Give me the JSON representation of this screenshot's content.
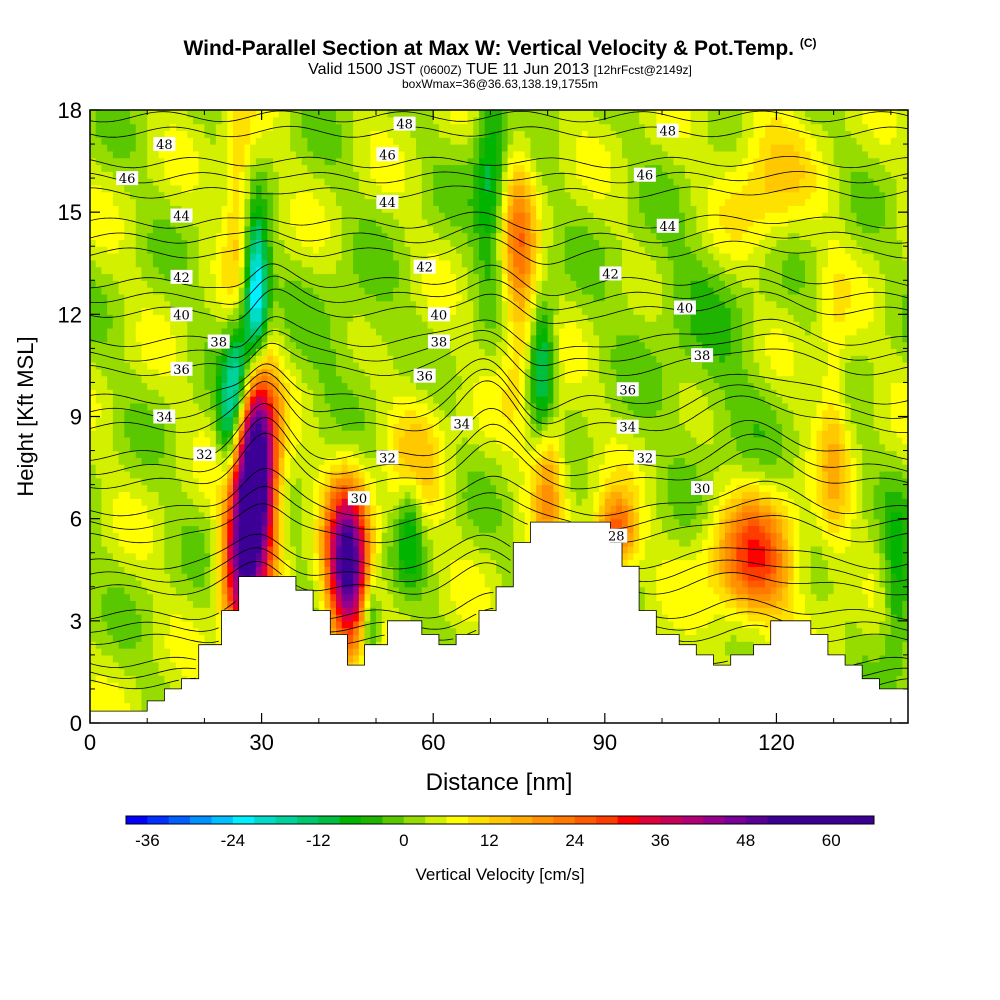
{
  "chart_data": {
    "type": "heatmap",
    "title": "Wind-Parallel Section at Max W: Vertical Velocity & Pot.Temp.",
    "title_mark": "(C)",
    "subtitle_main": "Valid 1500 JST",
    "subtitle_utc": "(0600Z)",
    "subtitle_date": "TUE 11 Jun 2013",
    "subtitle_fcst": "[12hrFcst@2149z]",
    "subtitle2": "boxWmax=36@36.63,138.19,1755m",
    "xlabel": "Distance [nm]",
    "ylabel": "Height [Kft MSL]",
    "xlim": [
      0,
      143
    ],
    "ylim": [
      0,
      18
    ],
    "xticks": [
      0,
      30,
      60,
      90,
      120
    ],
    "yticks": [
      0,
      3,
      6,
      9,
      12,
      15,
      18
    ],
    "colorbar": {
      "label": "Vertical Velocity [cm/s]",
      "ticks": [
        -36,
        -24,
        -12,
        0,
        12,
        24,
        36,
        48,
        60
      ],
      "min": -39,
      "max": 66,
      "step": 3,
      "colors": [
        "#0000ff",
        "#0030ff",
        "#0060ff",
        "#0090ff",
        "#00c0ff",
        "#00f0ff",
        "#00dcc8",
        "#00d29b",
        "#00c86e",
        "#00be41",
        "#00b400",
        "#1eb400",
        "#5ac800",
        "#96dc00",
        "#d2f000",
        "#ffff00",
        "#ffe100",
        "#ffc800",
        "#ffaa00",
        "#ff9100",
        "#ff7800",
        "#ff5a00",
        "#ff3c00",
        "#ff0000",
        "#e1003c",
        "#c8005a",
        "#b40078",
        "#96008c",
        "#780096",
        "#5a0096",
        "#3c0096",
        "#3c0096",
        "#3c0096",
        "#3c0096",
        "#3c0096"
      ]
    },
    "terrain": [
      [
        0,
        0.35
      ],
      [
        10,
        0.35
      ],
      [
        10,
        0.65
      ],
      [
        13,
        0.65
      ],
      [
        13,
        1.0
      ],
      [
        16,
        1.0
      ],
      [
        16,
        1.3
      ],
      [
        19,
        1.3
      ],
      [
        19,
        2.3
      ],
      [
        23,
        2.3
      ],
      [
        23,
        3.3
      ],
      [
        26,
        3.3
      ],
      [
        26,
        4.3
      ],
      [
        36,
        4.3
      ],
      [
        36,
        3.9
      ],
      [
        39,
        3.9
      ],
      [
        39,
        3.3
      ],
      [
        42,
        3.3
      ],
      [
        42,
        2.6
      ],
      [
        45,
        2.6
      ],
      [
        45,
        1.7
      ],
      [
        48,
        1.7
      ],
      [
        48,
        2.3
      ],
      [
        52,
        2.3
      ],
      [
        52,
        3.0
      ],
      [
        58,
        3.0
      ],
      [
        58,
        2.6
      ],
      [
        61,
        2.6
      ],
      [
        61,
        2.3
      ],
      [
        64,
        2.3
      ],
      [
        64,
        2.6
      ],
      [
        68,
        2.6
      ],
      [
        68,
        3.3
      ],
      [
        71,
        3.3
      ],
      [
        71,
        4.0
      ],
      [
        74,
        4.0
      ],
      [
        74,
        5.3
      ],
      [
        77,
        5.3
      ],
      [
        77,
        5.9
      ],
      [
        91,
        5.9
      ],
      [
        91,
        5.3
      ],
      [
        93,
        5.3
      ],
      [
        93,
        4.6
      ],
      [
        96,
        4.6
      ],
      [
        96,
        3.3
      ],
      [
        99,
        3.3
      ],
      [
        99,
        2.6
      ],
      [
        103,
        2.6
      ],
      [
        103,
        2.3
      ],
      [
        106,
        2.3
      ],
      [
        106,
        2.0
      ],
      [
        109,
        2.0
      ],
      [
        109,
        1.7
      ],
      [
        112,
        1.7
      ],
      [
        112,
        2.0
      ],
      [
        116,
        2.0
      ],
      [
        116,
        2.3
      ],
      [
        119,
        2.3
      ],
      [
        119,
        3.0
      ],
      [
        126,
        3.0
      ],
      [
        126,
        2.6
      ],
      [
        129,
        2.6
      ],
      [
        129,
        2.0
      ],
      [
        132,
        2.0
      ],
      [
        132,
        1.7
      ],
      [
        135,
        1.7
      ],
      [
        135,
        1.3
      ],
      [
        138,
        1.3
      ],
      [
        138,
        1.0
      ],
      [
        143,
        1.0
      ]
    ],
    "w_features": [
      {
        "x": 29,
        "y": 7.3,
        "sx": 2.5,
        "sy": 2.2,
        "a": 66
      },
      {
        "x": 26,
        "y": 4.5,
        "sx": 2.2,
        "sy": 1.8,
        "a": 30
      },
      {
        "x": 45,
        "y": 4.6,
        "sx": 2.6,
        "sy": 1.7,
        "a": 52
      },
      {
        "x": 116,
        "y": 4.8,
        "sx": 5.0,
        "sy": 1.3,
        "a": 25
      },
      {
        "x": 92,
        "y": 5.6,
        "sx": 2.5,
        "sy": 0.8,
        "a": 25
      },
      {
        "x": 75,
        "y": 13.5,
        "sx": 2.2,
        "sy": 2.5,
        "a": 18
      },
      {
        "x": 80,
        "y": 7.5,
        "sx": 2.0,
        "sy": 1.5,
        "a": 18
      },
      {
        "x": 26,
        "y": 15.5,
        "sx": 1.8,
        "sy": 2.0,
        "a": 12
      },
      {
        "x": 57,
        "y": 8.0,
        "sx": 3.5,
        "sy": 1.5,
        "a": 10
      },
      {
        "x": 130,
        "y": 8.5,
        "sx": 2.0,
        "sy": 3.0,
        "a": 10
      },
      {
        "x": 118,
        "y": 16.0,
        "sx": 5.0,
        "sy": 1.5,
        "a": 10
      },
      {
        "x": 29,
        "y": 12.5,
        "sx": 1.5,
        "sy": 1.6,
        "a": -34
      },
      {
        "x": 26,
        "y": 10.0,
        "sx": 1.5,
        "sy": 1.3,
        "a": -24
      },
      {
        "x": 24,
        "y": 8.6,
        "sx": 1.3,
        "sy": 1.2,
        "a": -16
      },
      {
        "x": 79,
        "y": 10.2,
        "sx": 1.6,
        "sy": 1.5,
        "a": -20
      },
      {
        "x": 70,
        "y": 16.0,
        "sx": 2.0,
        "sy": 2.0,
        "a": -14
      },
      {
        "x": 56,
        "y": 6.0,
        "sx": 1.6,
        "sy": 1.2,
        "a": -12
      },
      {
        "x": 49,
        "y": 3.0,
        "sx": 1.2,
        "sy": 1.0,
        "a": -16
      },
      {
        "x": 141,
        "y": 4.0,
        "sx": 1.8,
        "sy": 1.5,
        "a": -12
      },
      {
        "x": 104,
        "y": 12.5,
        "sx": 9.0,
        "sy": 1.5,
        "a": -4
      },
      {
        "x": 46,
        "y": 11.0,
        "sx": 6.0,
        "sy": 1.5,
        "a": -4
      },
      {
        "x": 110,
        "y": 9.0,
        "sx": 6.0,
        "sy": 1.5,
        "a": -4
      }
    ],
    "theta_contours": [
      28,
      30,
      32,
      34,
      36,
      38,
      40,
      42,
      44,
      46,
      48
    ],
    "contour_labels": [
      {
        "text": "48",
        "x": 13,
        "y": 17.0
      },
      {
        "text": "46",
        "x": 6.5,
        "y": 16.0
      },
      {
        "text": "44",
        "x": 16,
        "y": 14.9
      },
      {
        "text": "42",
        "x": 16,
        "y": 13.1
      },
      {
        "text": "40",
        "x": 16,
        "y": 12.0
      },
      {
        "text": "38",
        "x": 22.5,
        "y": 11.2
      },
      {
        "text": "36",
        "x": 16,
        "y": 10.4
      },
      {
        "text": "34",
        "x": 13,
        "y": 9.0
      },
      {
        "text": "32",
        "x": 20,
        "y": 7.9
      },
      {
        "text": "48",
        "x": 55,
        "y": 17.6
      },
      {
        "text": "46",
        "x": 52,
        "y": 16.7
      },
      {
        "text": "44",
        "x": 52,
        "y": 15.3
      },
      {
        "text": "42",
        "x": 58.5,
        "y": 13.4
      },
      {
        "text": "40",
        "x": 61,
        "y": 12.0
      },
      {
        "text": "38",
        "x": 61,
        "y": 11.2
      },
      {
        "text": "36",
        "x": 58.5,
        "y": 10.2
      },
      {
        "text": "34",
        "x": 65,
        "y": 8.8
      },
      {
        "text": "32",
        "x": 52,
        "y": 7.8
      },
      {
        "text": "30",
        "x": 47,
        "y": 6.6
      },
      {
        "text": "48",
        "x": 101,
        "y": 17.4
      },
      {
        "text": "46",
        "x": 97,
        "y": 16.1
      },
      {
        "text": "44",
        "x": 101,
        "y": 14.6
      },
      {
        "text": "42",
        "x": 91,
        "y": 13.2
      },
      {
        "text": "40",
        "x": 104,
        "y": 12.2
      },
      {
        "text": "38",
        "x": 107,
        "y": 10.8
      },
      {
        "text": "36",
        "x": 94,
        "y": 9.8
      },
      {
        "text": "34",
        "x": 94,
        "y": 8.7
      },
      {
        "text": "32",
        "x": 97,
        "y": 7.8
      },
      {
        "text": "30",
        "x": 107,
        "y": 6.9
      },
      {
        "text": "28",
        "x": 92,
        "y": 5.5
      }
    ]
  }
}
